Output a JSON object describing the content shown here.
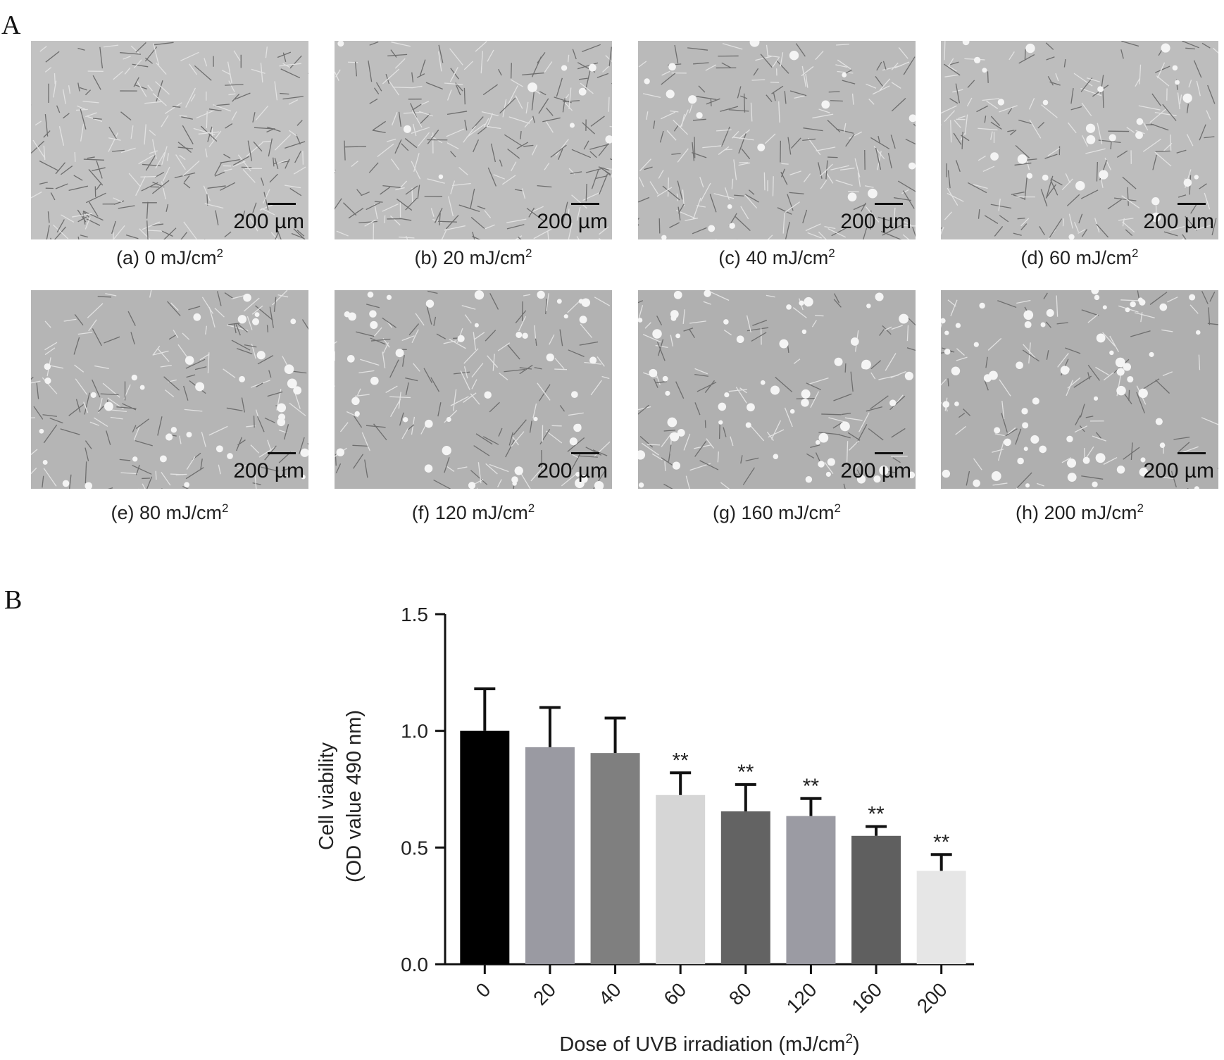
{
  "panel_labels": {
    "a": "A",
    "b": "B"
  },
  "scale_bar_text": "200 µm",
  "micrographs": [
    {
      "id": "a",
      "caption": "(a) 0 mJ/cm",
      "sup": "2",
      "tone": "#c2c2c2"
    },
    {
      "id": "b",
      "caption": "(b) 20 mJ/cm",
      "sup": "2",
      "tone": "#bebebe"
    },
    {
      "id": "c",
      "caption": "(c) 40 mJ/cm",
      "sup": "2",
      "tone": "#bababa"
    },
    {
      "id": "d",
      "caption": "(d) 60 mJ/cm",
      "sup": "2",
      "tone": "#bdbdbd"
    },
    {
      "id": "e",
      "caption": "(e) 80 mJ/cm",
      "sup": "2",
      "tone": "#b5b5b5"
    },
    {
      "id": "f",
      "caption": "(f) 120 mJ/cm",
      "sup": "2",
      "tone": "#b2b2b2"
    },
    {
      "id": "g",
      "caption": "(g) 160 mJ/cm",
      "sup": "2",
      "tone": "#b0b0b0"
    },
    {
      "id": "h",
      "caption": "(h) 200 mJ/cm",
      "sup": "2",
      "tone": "#afafaf"
    }
  ],
  "chart_data": {
    "type": "bar",
    "categories": [
      "0",
      "20",
      "40",
      "60",
      "80",
      "120",
      "160",
      "200"
    ],
    "values": [
      1.0,
      0.93,
      0.905,
      0.725,
      0.655,
      0.635,
      0.55,
      0.4
    ],
    "errors": [
      0.18,
      0.17,
      0.15,
      0.095,
      0.115,
      0.075,
      0.04,
      0.07
    ],
    "significance": [
      "",
      "",
      "",
      "**",
      "**",
      "**",
      "**",
      "**"
    ],
    "bar_colors": [
      "#000000",
      "#9a9aa2",
      "#7f7f7f",
      "#d6d6d6",
      "#636363",
      "#9b9ba3",
      "#5f5f5f",
      "#e6e6e6"
    ],
    "ylabel_line1": "Cell viability",
    "ylabel_line2": "(OD value 490 nm)",
    "xlabel": "Dose of UVB irradiation (mJ/cm",
    "xlabel_sup": "2",
    "xlabel_end": ")",
    "yticks": [
      "0.0",
      "0.5",
      "1.0",
      "1.5"
    ],
    "ylim": [
      0,
      1.5
    ]
  }
}
